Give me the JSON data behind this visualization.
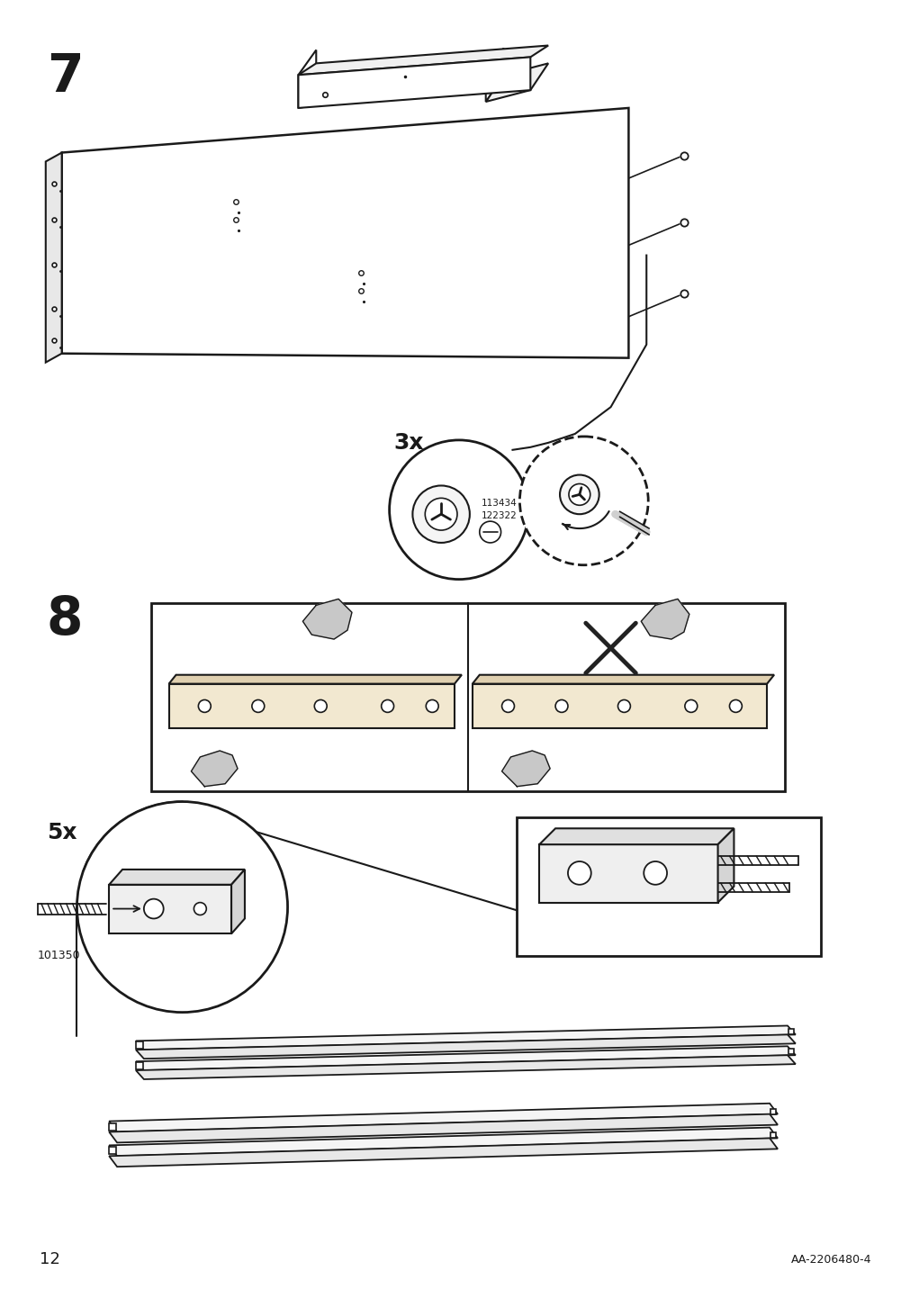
{
  "page_number": "12",
  "product_code": "AA-2206480-4",
  "background_color": "#ffffff",
  "line_color": "#1a1a1a",
  "step7_label": "7",
  "step8_label": "8",
  "count_3x": "3x",
  "count_5x": "5x",
  "part_number_1": "113434\n122322",
  "part_number_2": "101350",
  "figsize": [
    10.12,
    14.32
  ],
  "dpi": 100
}
